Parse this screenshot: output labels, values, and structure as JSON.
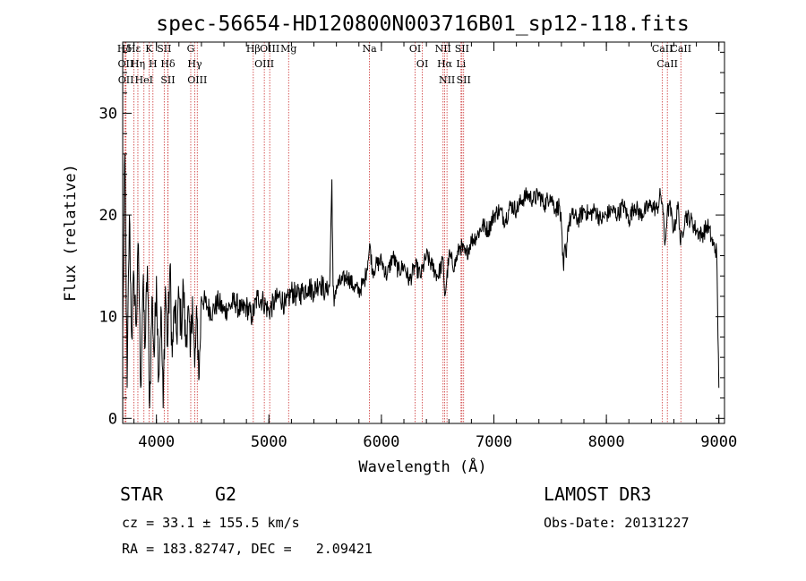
{
  "chart_data": {
    "type": "line",
    "title": "spec-56654-HD120800N003716B01_sp12-118.fits",
    "xlabel": "Wavelength (Å)",
    "ylabel": "Flux (relative)",
    "xlim": [
      3700,
      9050
    ],
    "ylim": [
      -0.5,
      37
    ],
    "xticks": [
      4000,
      5000,
      6000,
      7000,
      8000,
      9000
    ],
    "yticks": [
      0,
      10,
      20,
      30
    ],
    "series": [
      {
        "name": "flux",
        "x": [
          3700,
          3720,
          3740,
          3760,
          3780,
          3800,
          3820,
          3840,
          3860,
          3880,
          3900,
          3920,
          3940,
          3960,
          3980,
          4000,
          4020,
          4040,
          4060,
          4080,
          4100,
          4120,
          4140,
          4160,
          4180,
          4200,
          4220,
          4240,
          4260,
          4280,
          4300,
          4320,
          4340,
          4360,
          4380,
          4400,
          4450,
          4500,
          4550,
          4600,
          4650,
          4700,
          4750,
          4800,
          4850,
          4900,
          4950,
          5000,
          5050,
          5100,
          5150,
          5200,
          5250,
          5300,
          5350,
          5400,
          5450,
          5500,
          5540,
          5560,
          5570,
          5580,
          5590,
          5600,
          5650,
          5700,
          5750,
          5800,
          5850,
          5880,
          5900,
          5920,
          5950,
          6000,
          6050,
          6100,
          6150,
          6200,
          6250,
          6300,
          6350,
          6400,
          6450,
          6500,
          6550,
          6563,
          6580,
          6600,
          6650,
          6700,
          6750,
          6800,
          6850,
          6900,
          6950,
          7000,
          7050,
          7100,
          7150,
          7200,
          7250,
          7300,
          7350,
          7400,
          7450,
          7500,
          7550,
          7580,
          7600,
          7610,
          7620,
          7630,
          7640,
          7660,
          7700,
          7750,
          7800,
          7850,
          7900,
          7950,
          8000,
          8050,
          8100,
          8150,
          8200,
          8250,
          8300,
          8350,
          8400,
          8450,
          8480,
          8500,
          8520,
          8540,
          8560,
          8600,
          8640,
          8660,
          8700,
          8750,
          8800,
          8850,
          8900,
          8950,
          8980,
          9000
        ],
        "values": [
          8,
          26,
          3,
          20,
          8,
          14,
          9,
          17,
          3,
          13,
          7,
          15,
          1,
          12,
          6,
          14,
          4,
          11,
          1,
          13,
          7,
          15,
          6,
          11,
          8,
          12,
          9,
          13,
          7,
          11,
          6,
          12,
          5,
          10,
          4,
          12,
          11,
          10.5,
          11.5,
          10.5,
          11,
          11.5,
          10.5,
          11,
          10,
          12,
          11.5,
          10.5,
          11.5,
          12,
          11,
          12.5,
          12,
          12.5,
          13,
          12.5,
          13.5,
          12.5,
          13,
          23.5,
          13,
          11,
          12.5,
          13,
          13.5,
          14,
          13,
          12.5,
          13.5,
          15.5,
          17,
          14.5,
          15,
          15.5,
          14,
          16,
          14.5,
          15,
          13.5,
          15,
          14,
          16,
          15,
          14,
          15.5,
          12,
          13.5,
          16,
          15,
          17,
          16,
          17.5,
          18,
          19,
          18.5,
          20,
          20.5,
          19.5,
          21,
          20.5,
          21.5,
          22,
          21.5,
          22,
          21,
          22,
          20.5,
          21,
          19,
          16,
          14.5,
          17,
          16,
          19,
          20,
          19.5,
          20.5,
          20,
          20.5,
          19.5,
          20,
          20.5,
          20,
          21,
          19.5,
          21,
          20,
          20.5,
          21,
          20.5,
          22,
          21,
          17,
          20,
          21,
          18.5,
          21,
          17,
          20,
          19.5,
          18.5,
          18,
          19,
          17,
          16.5,
          3
        ]
      }
    ],
    "spectral_lines": [
      {
        "label": "Hδ",
        "x": 3716
      },
      {
        "label": "OII",
        "x": 3727
      },
      {
        "label": "OII",
        "x": 3729
      },
      {
        "label": "Hε",
        "x": 3800
      },
      {
        "label": "Hη",
        "x": 3835
      },
      {
        "label": "HeI",
        "x": 3889
      },
      {
        "label": "K",
        "x": 3934
      },
      {
        "label": "H",
        "x": 3969
      },
      {
        "label": "SII",
        "x": 4069
      },
      {
        "label": "Hδ",
        "x": 4102
      },
      {
        "label": "SII",
        "x": 4102
      },
      {
        "label": "G",
        "x": 4305
      },
      {
        "label": "Hγ",
        "x": 4341
      },
      {
        "label": "OIII",
        "x": 4363
      },
      {
        "label": "Hβ",
        "x": 4861
      },
      {
        "label": "OIII",
        "x": 4959
      },
      {
        "label": "OIII",
        "x": 5007
      },
      {
        "label": "Mg",
        "x": 5175
      },
      {
        "label": "Na",
        "x": 5894
      },
      {
        "label": "OI",
        "x": 6300
      },
      {
        "label": "OI",
        "x": 6364
      },
      {
        "label": "NII",
        "x": 6548
      },
      {
        "label": "Hα",
        "x": 6563
      },
      {
        "label": "NII",
        "x": 6583
      },
      {
        "label": "SII",
        "x": 6716
      },
      {
        "label": "Li",
        "x": 6708
      },
      {
        "label": "SII",
        "x": 6731
      },
      {
        "label": "CaII",
        "x": 8498
      },
      {
        "label": "CaII",
        "x": 8542
      },
      {
        "label": "CaII",
        "x": 8662
      }
    ]
  },
  "info": {
    "object_type": "STAR",
    "subclass": "G2",
    "survey": "LAMOST DR3",
    "cz": "cz = 33.1 ± 155.5 km/s",
    "obs_date": "Obs-Date: 20131227",
    "coords": "RA = 183.82747, DEC =   2.09421"
  },
  "colors": {
    "spectrum": "#000000",
    "line_marker": "#cc3333",
    "axes": "#000000"
  }
}
